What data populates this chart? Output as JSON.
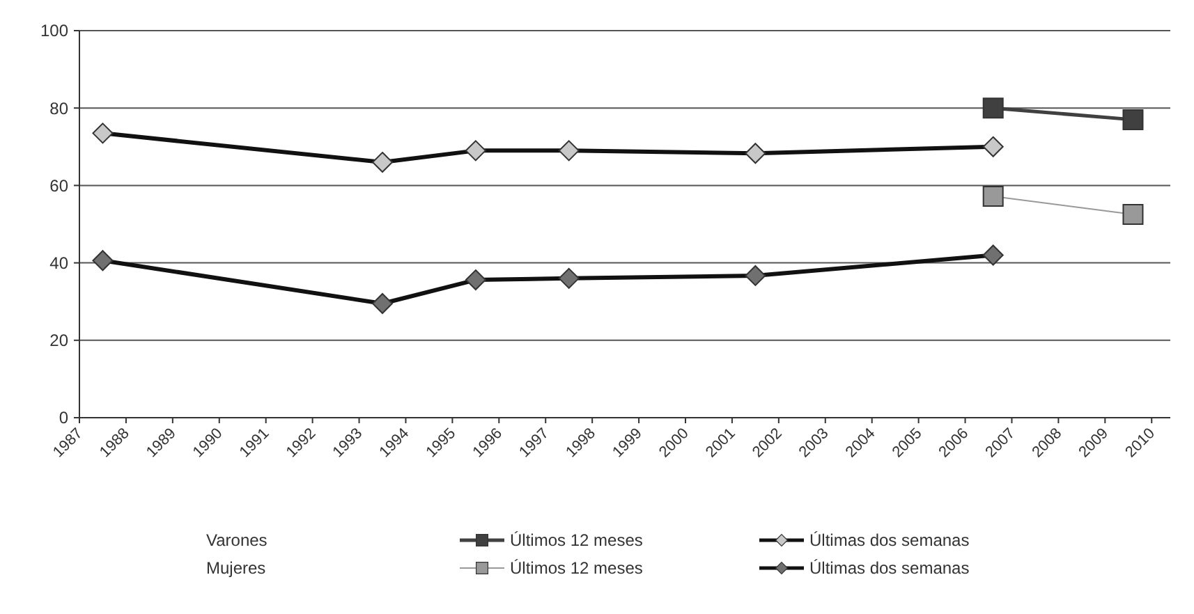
{
  "chart_data": {
    "type": "line",
    "xlim": [
      1987,
      2010.4
    ],
    "xticks": [
      1987,
      1988,
      1989,
      1990,
      1991,
      1992,
      1993,
      1994,
      1995,
      1996,
      1997,
      1998,
      1999,
      2000,
      2001,
      2002,
      2003,
      2004,
      2005,
      2006,
      2007,
      2008,
      2009,
      2010
    ],
    "ylim": [
      0,
      100
    ],
    "yticks": [
      0,
      20,
      40,
      60,
      80,
      100
    ],
    "grid": "y",
    "legend": "bottom",
    "annotations": [
      "Varones",
      "Mujeres"
    ],
    "series": [
      {
        "name": "Últimos 12 meses",
        "color": "#404040",
        "marker": "square",
        "x": [
          2006.6,
          2009.6
        ],
        "values": [
          80,
          77
        ]
      },
      {
        "name": "Últimas dos semanas",
        "color": "#c8c8c8",
        "marker": "diamond",
        "x": [
          1987.5,
          1993.5,
          1995.5,
          1997.5,
          2001.5,
          2006.6
        ],
        "values": [
          73.5,
          66,
          69,
          69,
          68.3,
          70
        ]
      },
      {
        "name": "Últimos 12 meses",
        "color": "#999999",
        "marker": "square",
        "x": [
          2006.6,
          2009.6
        ],
        "values": [
          57.2,
          52.5
        ]
      },
      {
        "name": "Últimas dos semanas",
        "color": "#707070",
        "marker": "diamond",
        "x": [
          1987.5,
          1993.5,
          1995.5,
          1997.5,
          2001.5,
          2006.6
        ],
        "values": [
          40.6,
          29.5,
          35.6,
          36,
          36.7,
          42
        ]
      }
    ]
  }
}
